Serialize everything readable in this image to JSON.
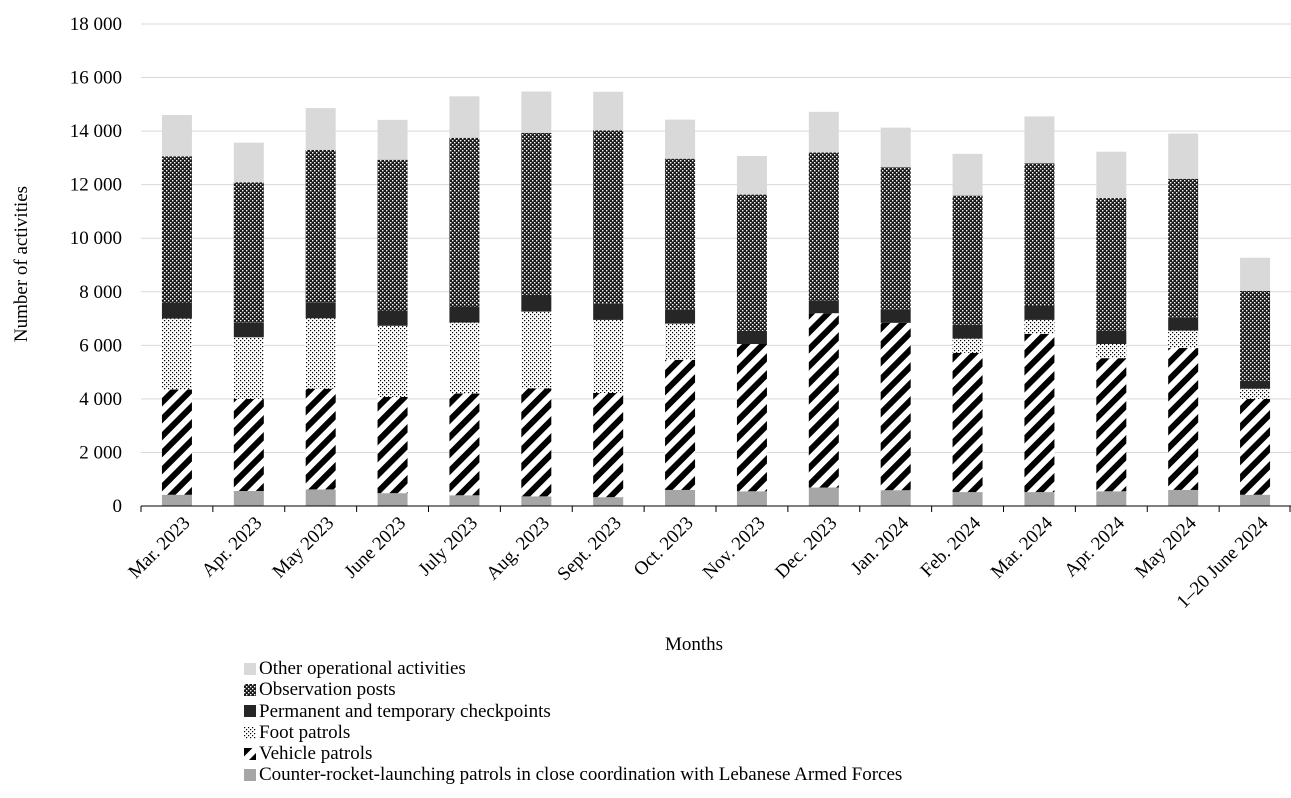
{
  "chart_data": {
    "type": "bar",
    "stacked": true,
    "xlabel": "Months",
    "ylabel": "Number of activities",
    "ylim": [
      0,
      18000
    ],
    "yticks": [
      0,
      2000,
      4000,
      6000,
      8000,
      10000,
      12000,
      14000,
      16000,
      18000
    ],
    "ytick_labels": [
      "0",
      "2 000",
      "4 000",
      "6 000",
      "8 000",
      "10 000",
      "12 000",
      "14 000",
      "16 000",
      "18 000"
    ],
    "grid": true,
    "legend_position": "bottom",
    "categories": [
      "Mar. 2023",
      "Apr. 2023",
      "May 2023",
      "June 2023",
      "July 2023",
      "Aug. 2023",
      "Sept. 2023",
      "Oct. 2023",
      "Nov. 2023",
      "Dec. 2023",
      "Jan. 2024",
      "Feb. 2024",
      "Mar. 2024",
      "Apr. 2024",
      "May 2024",
      "1–20 June 2024"
    ],
    "series": [
      {
        "name": "Counter-rocket-launching patrols in close coordination with Lebanese Armed Forces",
        "pattern": "solid-gray",
        "color": "#a6a6a6",
        "values": [
          420,
          560,
          620,
          480,
          400,
          360,
          330,
          600,
          550,
          690,
          590,
          520,
          520,
          550,
          600,
          420
        ]
      },
      {
        "name": "Vehicle patrols",
        "pattern": "diagonal-stripes",
        "color": "#000000",
        "values": [
          3930,
          3440,
          3760,
          3590,
          3800,
          4030,
          3890,
          4860,
          5500,
          6510,
          6250,
          5200,
          5910,
          4970,
          5300,
          3580
        ]
      },
      {
        "name": "Foot patrols",
        "pattern": "dots",
        "color": "#000000",
        "values": [
          2650,
          2300,
          2630,
          2660,
          2650,
          2870,
          2730,
          1350,
          0,
          0,
          0,
          530,
          520,
          530,
          650,
          380
        ]
      },
      {
        "name": "Permanent and temporary checkpoints",
        "pattern": "solid-dark",
        "color": "#262626",
        "values": [
          600,
          560,
          600,
          570,
          600,
          620,
          600,
          520,
          490,
          480,
          510,
          520,
          520,
          500,
          500,
          300
        ]
      },
      {
        "name": "Observation posts",
        "pattern": "checker",
        "color": "#262626",
        "values": [
          5460,
          5230,
          5690,
          5630,
          6300,
          6050,
          6480,
          5640,
          5090,
          5520,
          5300,
          4820,
          5330,
          4950,
          5170,
          3350
        ]
      },
      {
        "name": "Other operational activities",
        "pattern": "solid-light",
        "color": "#d9d9d9",
        "values": [
          1540,
          1480,
          1560,
          1490,
          1550,
          1550,
          1440,
          1460,
          1440,
          1520,
          1480,
          1560,
          1750,
          1730,
          1690,
          1240
        ]
      }
    ]
  }
}
